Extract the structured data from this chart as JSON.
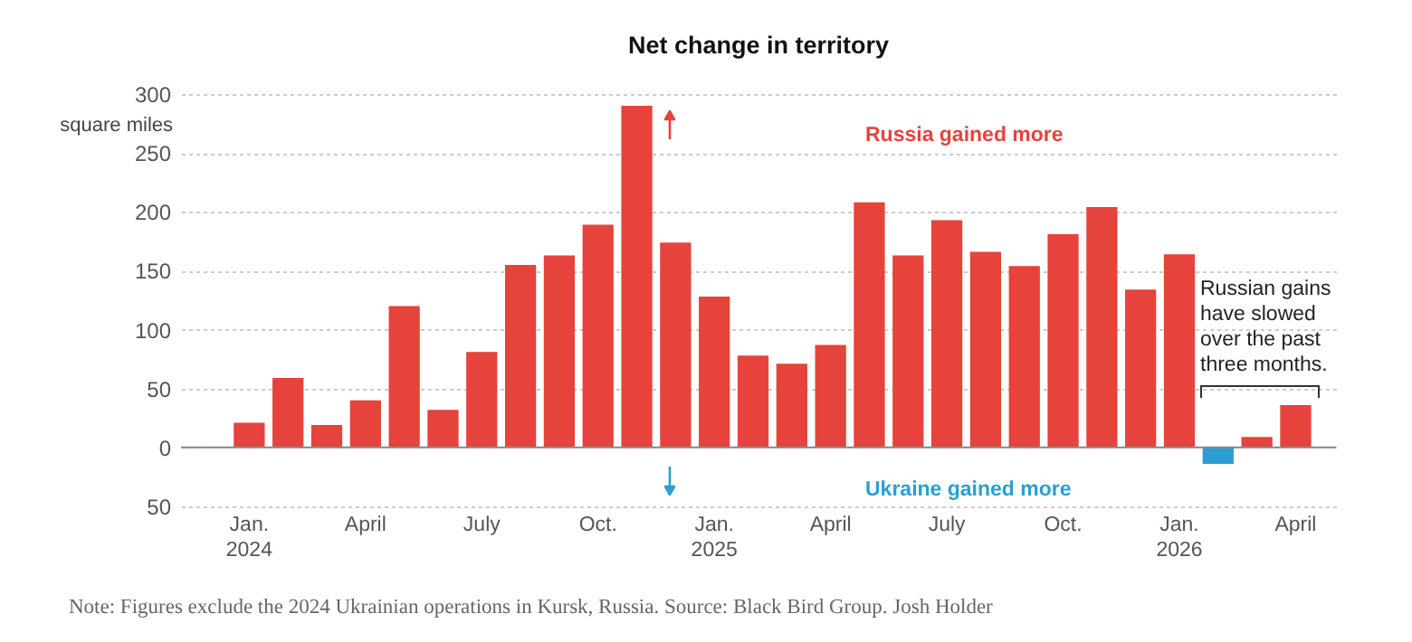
{
  "chart_data": {
    "type": "bar",
    "title": "Net change in territory",
    "ylabel": "square miles",
    "categories": [
      "Jan. 2024",
      null,
      null,
      "April",
      null,
      null,
      "July",
      null,
      null,
      "Oct.",
      null,
      null,
      "Jan. 2025",
      null,
      null,
      "April",
      null,
      null,
      "July",
      null,
      null,
      "Oct.",
      null,
      null,
      "Jan. 2026",
      null,
      null,
      "April"
    ],
    "values": [
      21,
      59,
      19,
      40,
      120,
      32,
      81,
      155,
      163,
      189,
      290,
      174,
      128,
      78,
      71,
      87,
      208,
      163,
      193,
      166,
      154,
      181,
      204,
      134,
      164,
      -14,
      9,
      36
    ],
    "colors": [
      "#e5433b",
      "#e5433b",
      "#e5433b",
      "#e5433b",
      "#e5433b",
      "#e5433b",
      "#e5433b",
      "#e5433b",
      "#e5433b",
      "#e5433b",
      "#e5433b",
      "#e5433b",
      "#e5433b",
      "#e5433b",
      "#e5433b",
      "#e5433b",
      "#e5433b",
      "#e5433b",
      "#e5433b",
      "#e5433b",
      "#e5433b",
      "#e5433b",
      "#e5433b",
      "#e5433b",
      "#e5433b",
      "#2a9fd0",
      "#e5433b",
      "#e5433b"
    ],
    "ylim": [
      -50,
      300
    ],
    "yticks": [
      {
        "value": -50,
        "label": "50"
      },
      0,
      50,
      100,
      150,
      200,
      250,
      300
    ],
    "grid": "y",
    "annotations": [
      "Russia gained more",
      "Ukraine gained more",
      "Russian gains have slowed over the past three months.",
      "Note: Figures exclude the 2024 Ukrainian operations in Kursk, Russia.  Source: Black Bird Group.  Josh Holder"
    ]
  }
}
